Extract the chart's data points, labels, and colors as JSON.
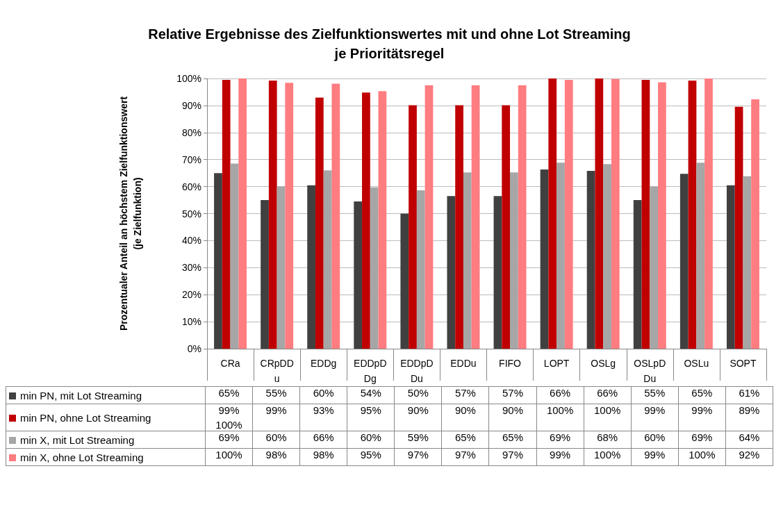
{
  "chart_data": {
    "type": "bar",
    "title": "Relative Ergebnisse des Zielfunktionswertes mit und ohne Lot Streaming\nje Prioritätsregel",
    "ylabel": "Prozentualer Anteil an höchstem Zielfunktionswert\n(je Zielfunktion)",
    "categories": [
      "CRa",
      "CRpDDu",
      "EDDg",
      "EDDpDDg",
      "EDDpDDu",
      "EDDu",
      "FIFO",
      "LOPT",
      "OSLg",
      "OSLpDDu",
      "OSLu",
      "SOPT"
    ],
    "series": [
      {
        "name": "min PN, mit Lot Streaming",
        "color": "#404040",
        "values": [
          65,
          55,
          60.5,
          54.5,
          50,
          56.5,
          56.5,
          66.3,
          65.8,
          55,
          64.7,
          60.5
        ],
        "value_labels": [
          "65%",
          "55%",
          "60%",
          "54%",
          "50%",
          "57%",
          "57%",
          "66%",
          "66%",
          "55%",
          "65%",
          "61%"
        ]
      },
      {
        "name": "min PN, ohne Lot Streaming",
        "color": "#c00000",
        "values": [
          99.5,
          99.2,
          92.9,
          94.8,
          90.1,
          90.1,
          90.1,
          100,
          100,
          99.5,
          99.2,
          89.5
        ],
        "value_labels": [
          "99%",
          "99%",
          "93%",
          "95%",
          "90%",
          "90%",
          "90%",
          "100%",
          "100%",
          "99%",
          "99%",
          "89%"
        ]
      },
      {
        "name": "min X, mit Lot Streaming",
        "color": "#a6a6a6",
        "values": [
          68.5,
          60,
          66,
          59.7,
          58.6,
          65.2,
          65.2,
          68.8,
          68.3,
          60,
          68.8,
          63.8
        ],
        "value_labels": [
          "69%",
          "60%",
          "66%",
          "60%",
          "59%",
          "65%",
          "65%",
          "69%",
          "68%",
          "60%",
          "69%",
          "64%"
        ]
      },
      {
        "name": "min X, ohne Lot Streaming",
        "color": "#ff7c80",
        "values": [
          100,
          98.4,
          98.1,
          95.3,
          97.5,
          97.5,
          97.5,
          99.5,
          99.8,
          98.6,
          100,
          92.3
        ],
        "value_labels": [
          "100%",
          "98%",
          "98%",
          "95%",
          "97%",
          "97%",
          "97%",
          "99%",
          "100%",
          "99%",
          "100%",
          "92%"
        ]
      }
    ],
    "annotations": [
      "100%"
    ],
    "ylim": [
      0,
      100
    ],
    "yticks": [
      {
        "value": 0,
        "label": "0%"
      },
      {
        "value": 10,
        "label": "10%"
      },
      {
        "value": 20,
        "label": "20%"
      },
      {
        "value": 30,
        "label": "30%"
      },
      {
        "value": 40,
        "label": "40%"
      },
      {
        "value": 50,
        "label": "50%"
      },
      {
        "value": 60,
        "label": "60%"
      },
      {
        "value": 70,
        "label": "70%"
      },
      {
        "value": 80,
        "label": "80%"
      },
      {
        "value": 90,
        "label": "90%"
      },
      {
        "value": 100,
        "label": "100%"
      }
    ],
    "grid": "y",
    "legend": "bottom"
  }
}
